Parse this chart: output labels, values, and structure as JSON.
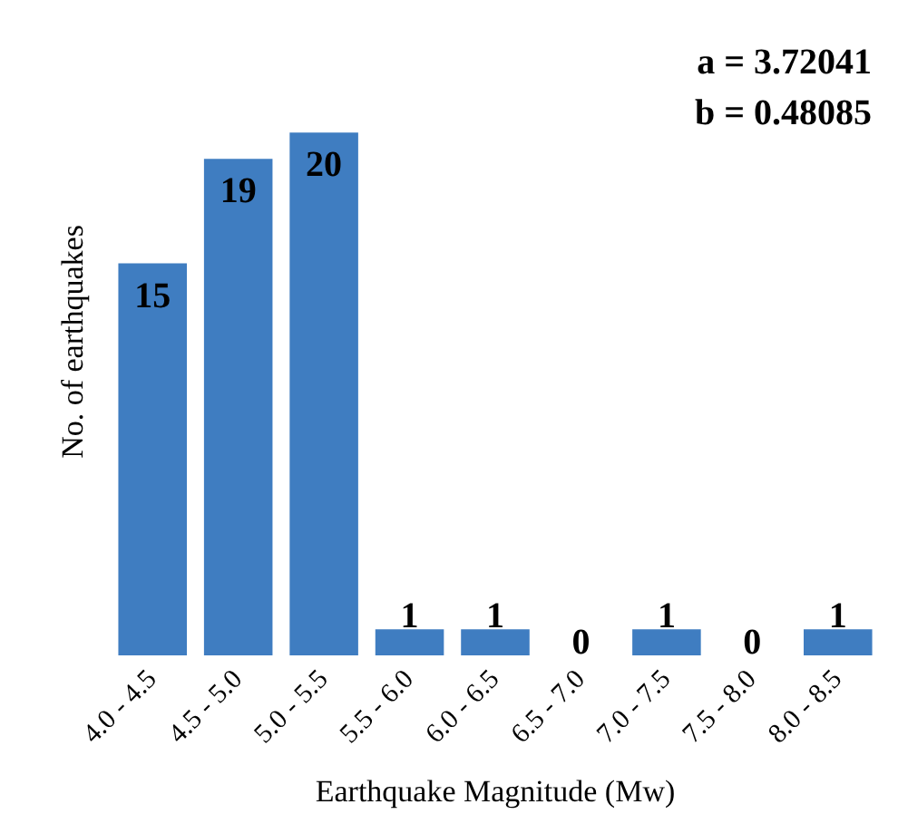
{
  "chart_data": {
    "type": "bar",
    "xlabel": "Earthquake Magnitude (Mw)",
    "ylabel": "No. of earthquakes",
    "categories": [
      "4.0 - 4.5",
      "4.5 - 5.0",
      "5.0 - 5.5",
      "5.5 - 6.0",
      "6.0 - 6.5",
      "6.5 - 7.0",
      "7.0 - 7.5",
      "7.5 - 8.0",
      "8.0 - 8.5"
    ],
    "values": [
      15,
      19,
      20,
      1,
      1,
      0,
      1,
      0,
      1
    ],
    "color": "#3f7dc1",
    "data_labels": true,
    "grid": false,
    "annotations": [
      "a = 3.72041",
      "b = 0.48085"
    ]
  }
}
